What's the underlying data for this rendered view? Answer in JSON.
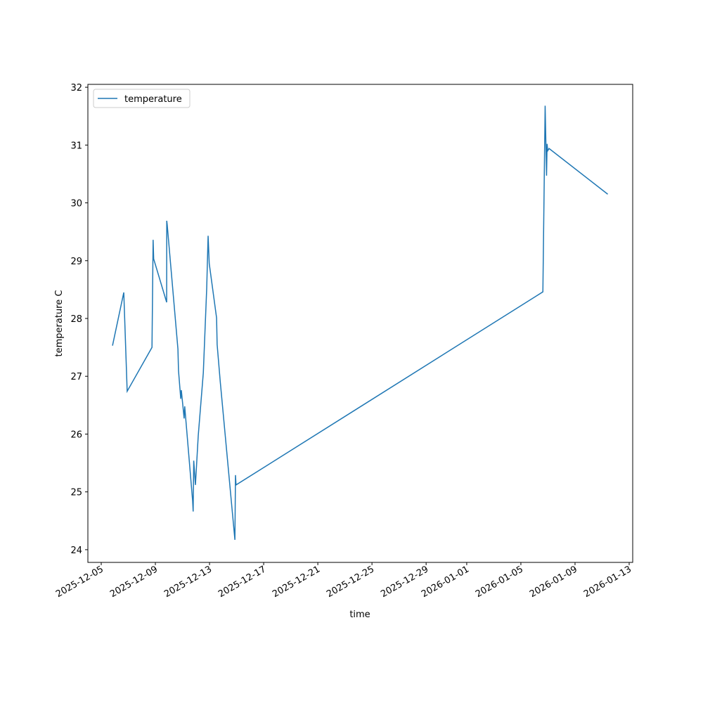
{
  "chart_data": {
    "type": "line",
    "x_label": "time",
    "y_label": "temperature C",
    "x": [
      "2025-12-05T20:00",
      "2025-12-06T16:00",
      "2025-12-06T22:00",
      "2025-12-08T18:00",
      "2025-12-08T20:00",
      "2025-12-08T21:00",
      "2025-12-09T20:00",
      "2025-12-09T20:10",
      "2025-12-09T21:00",
      "2025-12-10T16:00",
      "2025-12-10T17:00",
      "2025-12-10T21:00",
      "2025-12-10T22:00",
      "2025-12-11T03:00",
      "2025-12-11T04:00",
      "2025-12-11T18:00",
      "2025-12-11T19:00",
      "2025-12-11T20:00",
      "2025-12-11T23:00",
      "2025-12-12T04:00",
      "2025-12-12T13:00",
      "2025-12-12T19:00",
      "2025-12-12T21:30",
      "2025-12-12T23:30",
      "2025-12-13T12:30",
      "2025-12-13T13:30",
      "2025-12-13T19:00",
      "2025-12-14T21:00",
      "2025-12-14T22:00",
      "2025-12-14T23:00",
      "2026-01-06T15:00",
      "2026-01-06T19:00",
      "2026-01-06T21:30",
      "2026-01-06T22:30",
      "2026-01-06T23:30",
      "2026-01-07T02:00",
      "2026-01-11T10:00"
    ],
    "series": [
      {
        "name": "temperature",
        "color": "#1f77b4",
        "values": [
          27.53,
          28.45,
          26.74,
          27.5,
          29.36,
          29.03,
          28.28,
          29.69,
          29.62,
          27.47,
          27.1,
          26.61,
          26.76,
          26.27,
          26.48,
          24.85,
          24.66,
          25.54,
          25.12,
          25.97,
          27.06,
          28.52,
          29.43,
          28.95,
          28.01,
          27.55,
          26.91,
          24.17,
          25.29,
          25.12,
          28.46,
          31.68,
          30.47,
          31.02,
          30.9,
          30.94,
          30.15
        ]
      }
    ],
    "xlim": [
      "2025-12-04T00:20",
      "2026-01-13T06:15"
    ],
    "xticks": [
      "2025-12-05",
      "2025-12-09",
      "2025-12-13",
      "2025-12-17",
      "2025-12-21",
      "2025-12-25",
      "2025-12-29",
      "2026-01-01",
      "2026-01-05",
      "2026-01-09",
      "2026-01-13"
    ],
    "ylim": [
      23.78,
      32.05
    ],
    "yticks": [
      24,
      25,
      26,
      27,
      28,
      29,
      30,
      31,
      32
    ],
    "grid": false,
    "legend": "upper left"
  }
}
